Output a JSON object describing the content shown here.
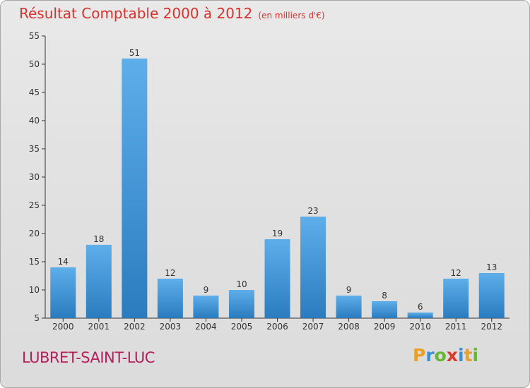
{
  "chart_data": {
    "type": "bar",
    "title": "Résultat Comptable 2000 à 2012",
    "unit_label": "(en milliers d'€)",
    "categories": [
      "2000",
      "2001",
      "2002",
      "2003",
      "2004",
      "2005",
      "2006",
      "2007",
      "2008",
      "2009",
      "2010",
      "2011",
      "2012"
    ],
    "values": [
      14,
      18,
      51,
      12,
      9,
      10,
      19,
      23,
      9,
      8,
      6,
      12,
      13
    ],
    "ylim": [
      5,
      55
    ],
    "yticks": [
      5,
      10,
      15,
      20,
      25,
      30,
      35,
      40,
      45,
      50,
      55
    ],
    "xlabel": "",
    "ylabel": "",
    "grid": false,
    "bar_color": "#3d94d6"
  },
  "footer": {
    "town": "LUBRET-SAINT-LUC",
    "brand_letters": [
      {
        "char": "P",
        "color": "#e8a02a"
      },
      {
        "char": "r",
        "color": "#3f8ed2"
      },
      {
        "char": "o",
        "color": "#67b735"
      },
      {
        "char": "x",
        "color": "#d93a2e"
      },
      {
        "char": "i",
        "color": "#3f8ed2"
      },
      {
        "char": "t",
        "color": "#e8a02a"
      },
      {
        "char": "i",
        "color": "#67b735"
      }
    ]
  }
}
